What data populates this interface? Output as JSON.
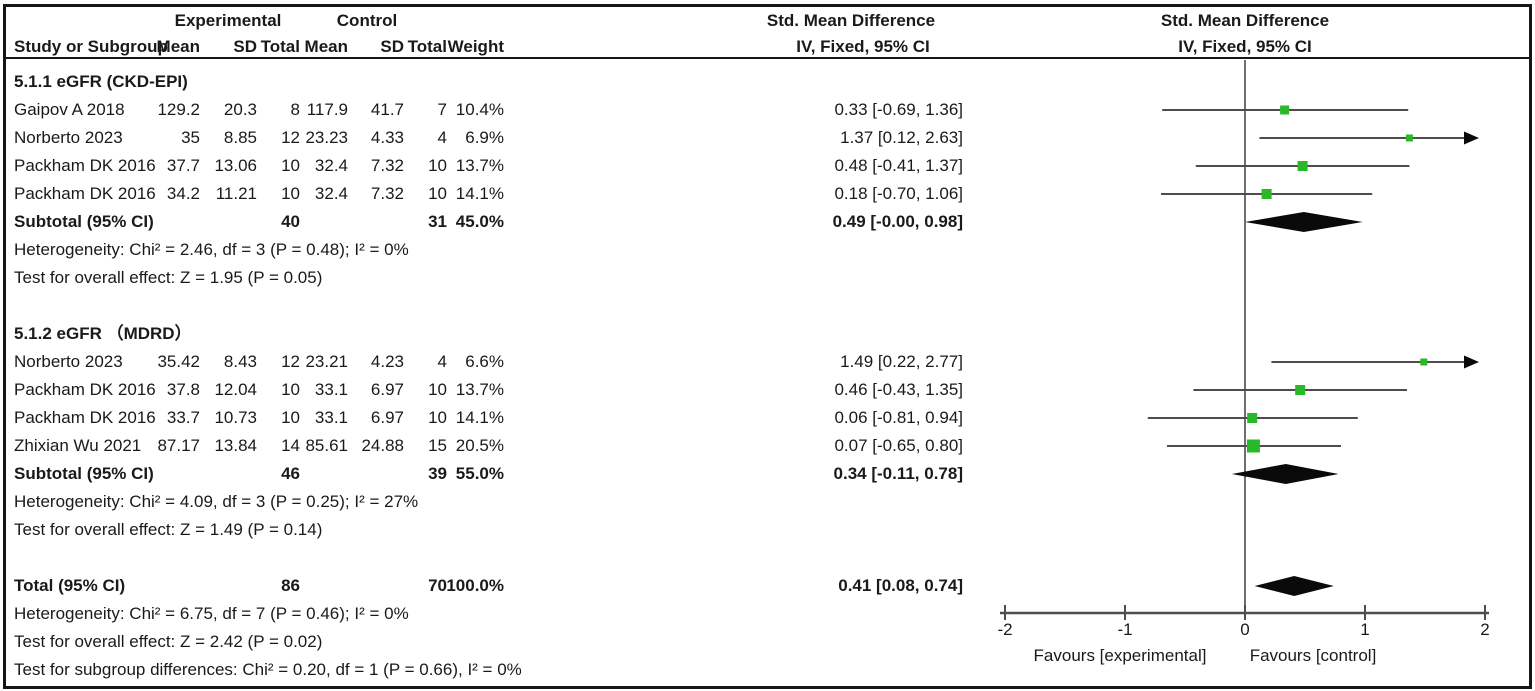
{
  "figure": {
    "headers": {
      "experimental": "Experimental",
      "control": "Control",
      "study_col": "Study or Subgroup",
      "mean": "Mean",
      "sd": "SD",
      "total": "Total",
      "weight": "Weight",
      "smd_table_line1": "Std. Mean Difference",
      "smd_table_line2": "IV, Fixed, 95% CI",
      "smd_plot_line1": "Std. Mean Difference",
      "smd_plot_line2": "IV, Fixed, 95% CI"
    }
  },
  "chart_data": {
    "type": "forest",
    "effect_measure": "Std. Mean Difference, IV, Fixed, 95% CI",
    "axis": {
      "min": -2,
      "max": 2,
      "ticks": [
        -2,
        -1,
        0,
        1,
        2
      ],
      "left_label": "Favours [experimental]",
      "right_label": "Favours [control]"
    },
    "groups": [
      {
        "heading": "5.1.1 eGFR (CKD-EPI)",
        "studies": [
          {
            "name": "Gaipov A 2018",
            "exp_mean": "129.2",
            "exp_sd": "20.3",
            "exp_total": "8",
            "ctl_mean": "117.9",
            "ctl_sd": "41.7",
            "ctl_total": "7",
            "weight": "10.4%",
            "weight_pct": 10.4,
            "ci_text": "0.33 [-0.69, 1.36]",
            "est": 0.33,
            "lo": -0.69,
            "hi": 1.36
          },
          {
            "name": "Norberto 2023",
            "exp_mean": "35",
            "exp_sd": "8.85",
            "exp_total": "12",
            "ctl_mean": "23.23",
            "ctl_sd": "4.33",
            "ctl_total": "4",
            "weight": "6.9%",
            "weight_pct": 6.9,
            "ci_text": "1.37 [0.12, 2.63]",
            "est": 1.37,
            "lo": 0.12,
            "hi": 2.63
          },
          {
            "name": "Packham DK 2016",
            "exp_mean": "37.7",
            "exp_sd": "13.06",
            "exp_total": "10",
            "ctl_mean": "32.4",
            "ctl_sd": "7.32",
            "ctl_total": "10",
            "weight": "13.7%",
            "weight_pct": 13.7,
            "ci_text": "0.48 [-0.41, 1.37]",
            "est": 0.48,
            "lo": -0.41,
            "hi": 1.37
          },
          {
            "name": "Packham DK 2016",
            "exp_mean": "34.2",
            "exp_sd": "11.21",
            "exp_total": "10",
            "ctl_mean": "32.4",
            "ctl_sd": "7.32",
            "ctl_total": "10",
            "weight": "14.1%",
            "weight_pct": 14.1,
            "ci_text": "0.18 [-0.70, 1.06]",
            "est": 0.18,
            "lo": -0.7,
            "hi": 1.06
          }
        ],
        "subtotal": {
          "label": "Subtotal (95% CI)",
          "exp_total": "40",
          "ctl_total": "31",
          "weight": "45.0%",
          "ci_text": "0.49 [-0.00, 0.98]",
          "est": 0.49,
          "lo": 0.0,
          "hi": 0.98
        },
        "heterogeneity": "Heterogeneity: Chi² = 2.46, df = 3 (P = 0.48); I² = 0%",
        "overall_effect": "Test for overall effect: Z = 1.95 (P = 0.05)"
      },
      {
        "heading": "5.1.2 eGFR （MDRD）",
        "studies": [
          {
            "name": "Norberto 2023",
            "exp_mean": "35.42",
            "exp_sd": "8.43",
            "exp_total": "12",
            "ctl_mean": "23.21",
            "ctl_sd": "4.23",
            "ctl_total": "4",
            "weight": "6.6%",
            "weight_pct": 6.6,
            "ci_text": "1.49 [0.22, 2.77]",
            "est": 1.49,
            "lo": 0.22,
            "hi": 2.77
          },
          {
            "name": "Packham DK 2016",
            "exp_mean": "37.8",
            "exp_sd": "12.04",
            "exp_total": "10",
            "ctl_mean": "33.1",
            "ctl_sd": "6.97",
            "ctl_total": "10",
            "weight": "13.7%",
            "weight_pct": 13.7,
            "ci_text": "0.46 [-0.43, 1.35]",
            "est": 0.46,
            "lo": -0.43,
            "hi": 1.35
          },
          {
            "name": "Packham DK 2016",
            "exp_mean": "33.7",
            "exp_sd": "10.73",
            "exp_total": "10",
            "ctl_mean": "33.1",
            "ctl_sd": "6.97",
            "ctl_total": "10",
            "weight": "14.1%",
            "weight_pct": 14.1,
            "ci_text": "0.06 [-0.81, 0.94]",
            "est": 0.06,
            "lo": -0.81,
            "hi": 0.94
          },
          {
            "name": "Zhixian Wu 2021",
            "exp_mean": "87.17",
            "exp_sd": "13.84",
            "exp_total": "14",
            "ctl_mean": "85.61",
            "ctl_sd": "24.88",
            "ctl_total": "15",
            "weight": "20.5%",
            "weight_pct": 20.5,
            "ci_text": "0.07 [-0.65, 0.80]",
            "est": 0.07,
            "lo": -0.65,
            "hi": 0.8
          }
        ],
        "subtotal": {
          "label": "Subtotal (95% CI)",
          "exp_total": "46",
          "ctl_total": "39",
          "weight": "55.0%",
          "ci_text": "0.34 [-0.11, 0.78]",
          "est": 0.34,
          "lo": -0.11,
          "hi": 0.78
        },
        "heterogeneity": "Heterogeneity: Chi² = 4.09, df = 3 (P = 0.25); I² = 27%",
        "overall_effect": "Test for overall effect: Z = 1.49 (P = 0.14)"
      }
    ],
    "total": {
      "label": "Total (95% CI)",
      "exp_total": "86",
      "ctl_total": "70",
      "weight": "100.0%",
      "ci_text": "0.41 [0.08, 0.74]",
      "est": 0.41,
      "lo": 0.08,
      "hi": 0.74
    },
    "total_heterogeneity": "Heterogeneity: Chi² = 6.75, df = 7 (P = 0.46); I² = 0%",
    "total_overall_effect": "Test for overall effect: Z = 2.42 (P = 0.02)",
    "subgroup_differences": "Test for subgroup differences: Chi² = 0.20, df = 1 (P = 0.66), I² = 0%",
    "colors": {
      "marker_green": "#28b828",
      "ci_line": "#4d4d4d",
      "diamond": "#0a0a0a",
      "zero_line": "#6e6e6e",
      "axis": "#4d4d4d",
      "text": "#1a1a1a"
    }
  }
}
